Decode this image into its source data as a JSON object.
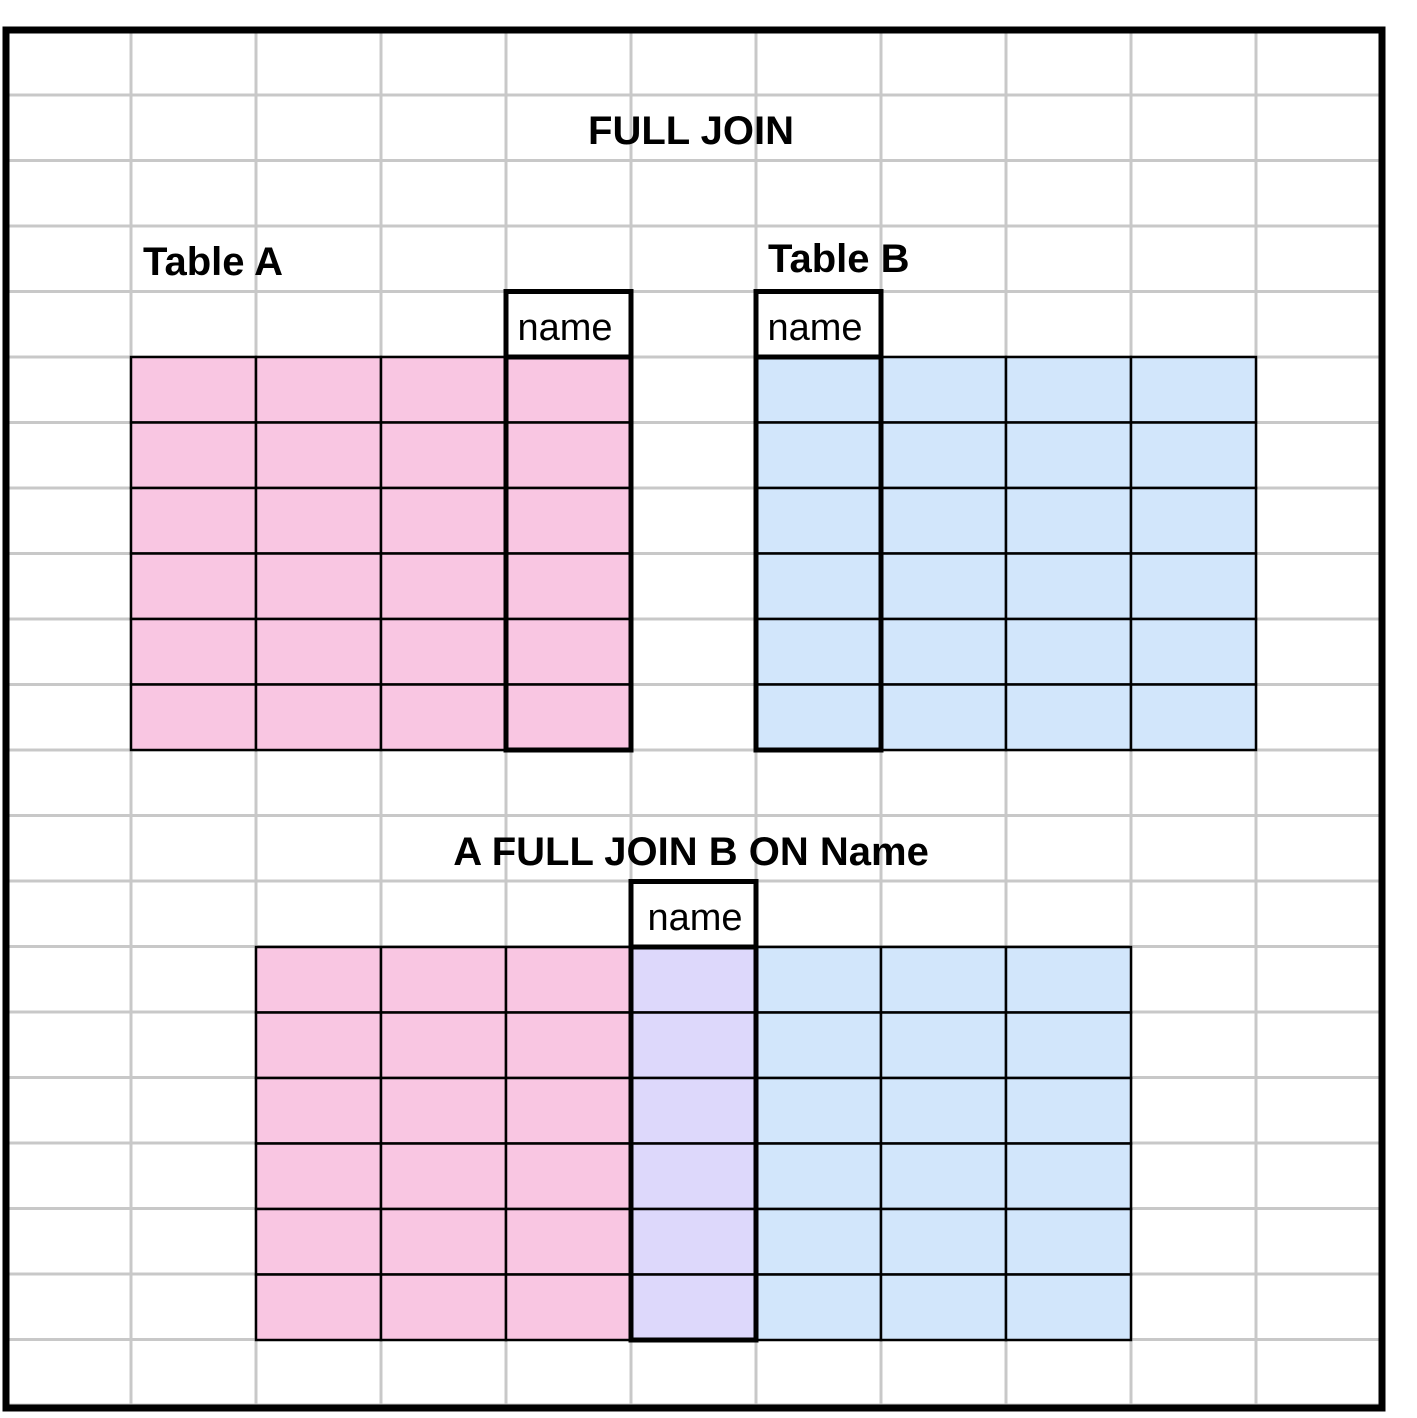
{
  "title": "FULL JOIN",
  "table_a": {
    "label": "Table A",
    "key_header": "name",
    "columns": 4,
    "rows": 6,
    "key_column_index": 3,
    "fill_color": "#f9c6e2"
  },
  "table_b": {
    "label": "Table B",
    "key_header": "name",
    "columns": 4,
    "rows": 6,
    "key_column_index": 0,
    "fill_color": "#d2e6fb"
  },
  "result": {
    "label": "A FULL JOIN B ON Name",
    "key_header": "name",
    "columns": 7,
    "rows": 6,
    "key_column_index": 3,
    "left_fill_color": "#f9c6e2",
    "key_fill_color": "#ddd8fb",
    "right_fill_color": "#d2e6fb"
  },
  "colors": {
    "grid_line": "#c8c8c8",
    "table_line": "#000000",
    "frame": "#000000",
    "background": "#ffffff"
  }
}
